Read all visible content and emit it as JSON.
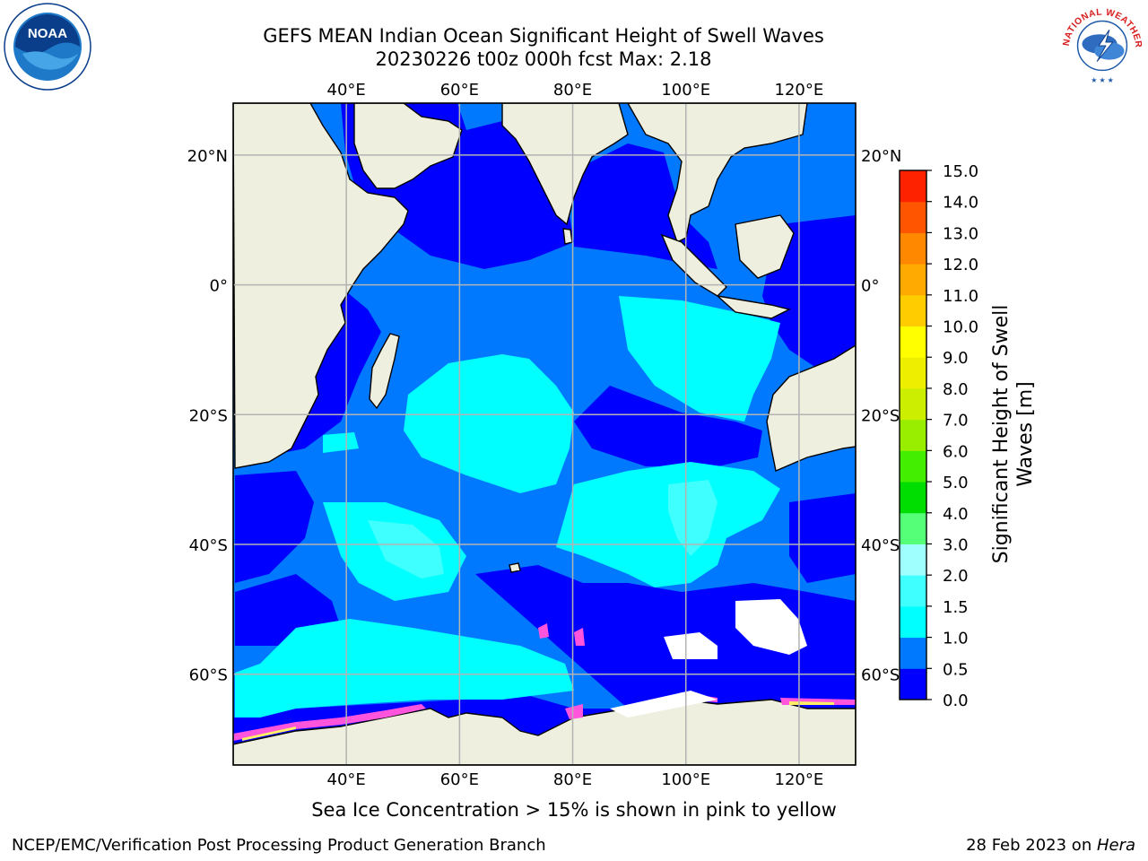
{
  "title": {
    "line1": "GEFS MEAN Indian Ocean Significant Height of Swell Waves",
    "line2": "20230226 t00z 000h fcst   Max: 2.18"
  },
  "map": {
    "lon_range": [
      20,
      130
    ],
    "lat_range": [
      -74,
      28
    ],
    "top_lon_ticks": [
      "40°E",
      "60°E",
      "80°E",
      "100°E",
      "120°E"
    ],
    "bottom_lon_ticks": [
      "40°E",
      "60°E",
      "80°E",
      "100°E",
      "120°E"
    ],
    "left_lat_ticks": [
      "20°N",
      "0°",
      "20°S",
      "40°S",
      "60°S"
    ],
    "right_lat_ticks": [
      "20°N",
      "0°",
      "20°S",
      "40°S",
      "60°S"
    ],
    "land_color": "#efefdf",
    "ocean_colors": {
      "0.0-0.5": "#0000ff",
      "0.5-1.0": "#0079ff",
      "1.0-1.5": "#00ffff",
      "1.5-2.0": "#40ffff",
      "2.0-3.0": "#9fffff"
    },
    "sea_ice_color": "#ff55dd"
  },
  "colorbar": {
    "label_line1": "Significant Height of Swell",
    "label_line2": "Waves [m]",
    "ticks": [
      "0.0",
      "0.5",
      "1.0",
      "1.5",
      "2.0",
      "3.0",
      "4.0",
      "5.0",
      "6.0",
      "7.0",
      "8.0",
      "9.0",
      "10.0",
      "11.0",
      "12.0",
      "13.0",
      "14.0",
      "15.0"
    ],
    "colors": [
      "#0000ff",
      "#0079ff",
      "#00ffff",
      "#40ffff",
      "#9fffff",
      "#55ff77",
      "#00dd00",
      "#44ee00",
      "#99ee00",
      "#ccee00",
      "#eeee00",
      "#ffff00",
      "#ffcc00",
      "#ffaa00",
      "#ff8800",
      "#ff5500",
      "#ff2200",
      "#ff0000"
    ]
  },
  "note": "Sea Ice Concentration > 15% is shown in pink to yellow",
  "footer": {
    "left": "NCEP/EMC/Verification Post Processing Product Generation Branch",
    "right_date": "28 Feb 2023 on ",
    "right_machine": "Hera"
  },
  "logos": {
    "noaa": "NOAA",
    "nws": "NATIONAL WEATHER SERVICE"
  }
}
